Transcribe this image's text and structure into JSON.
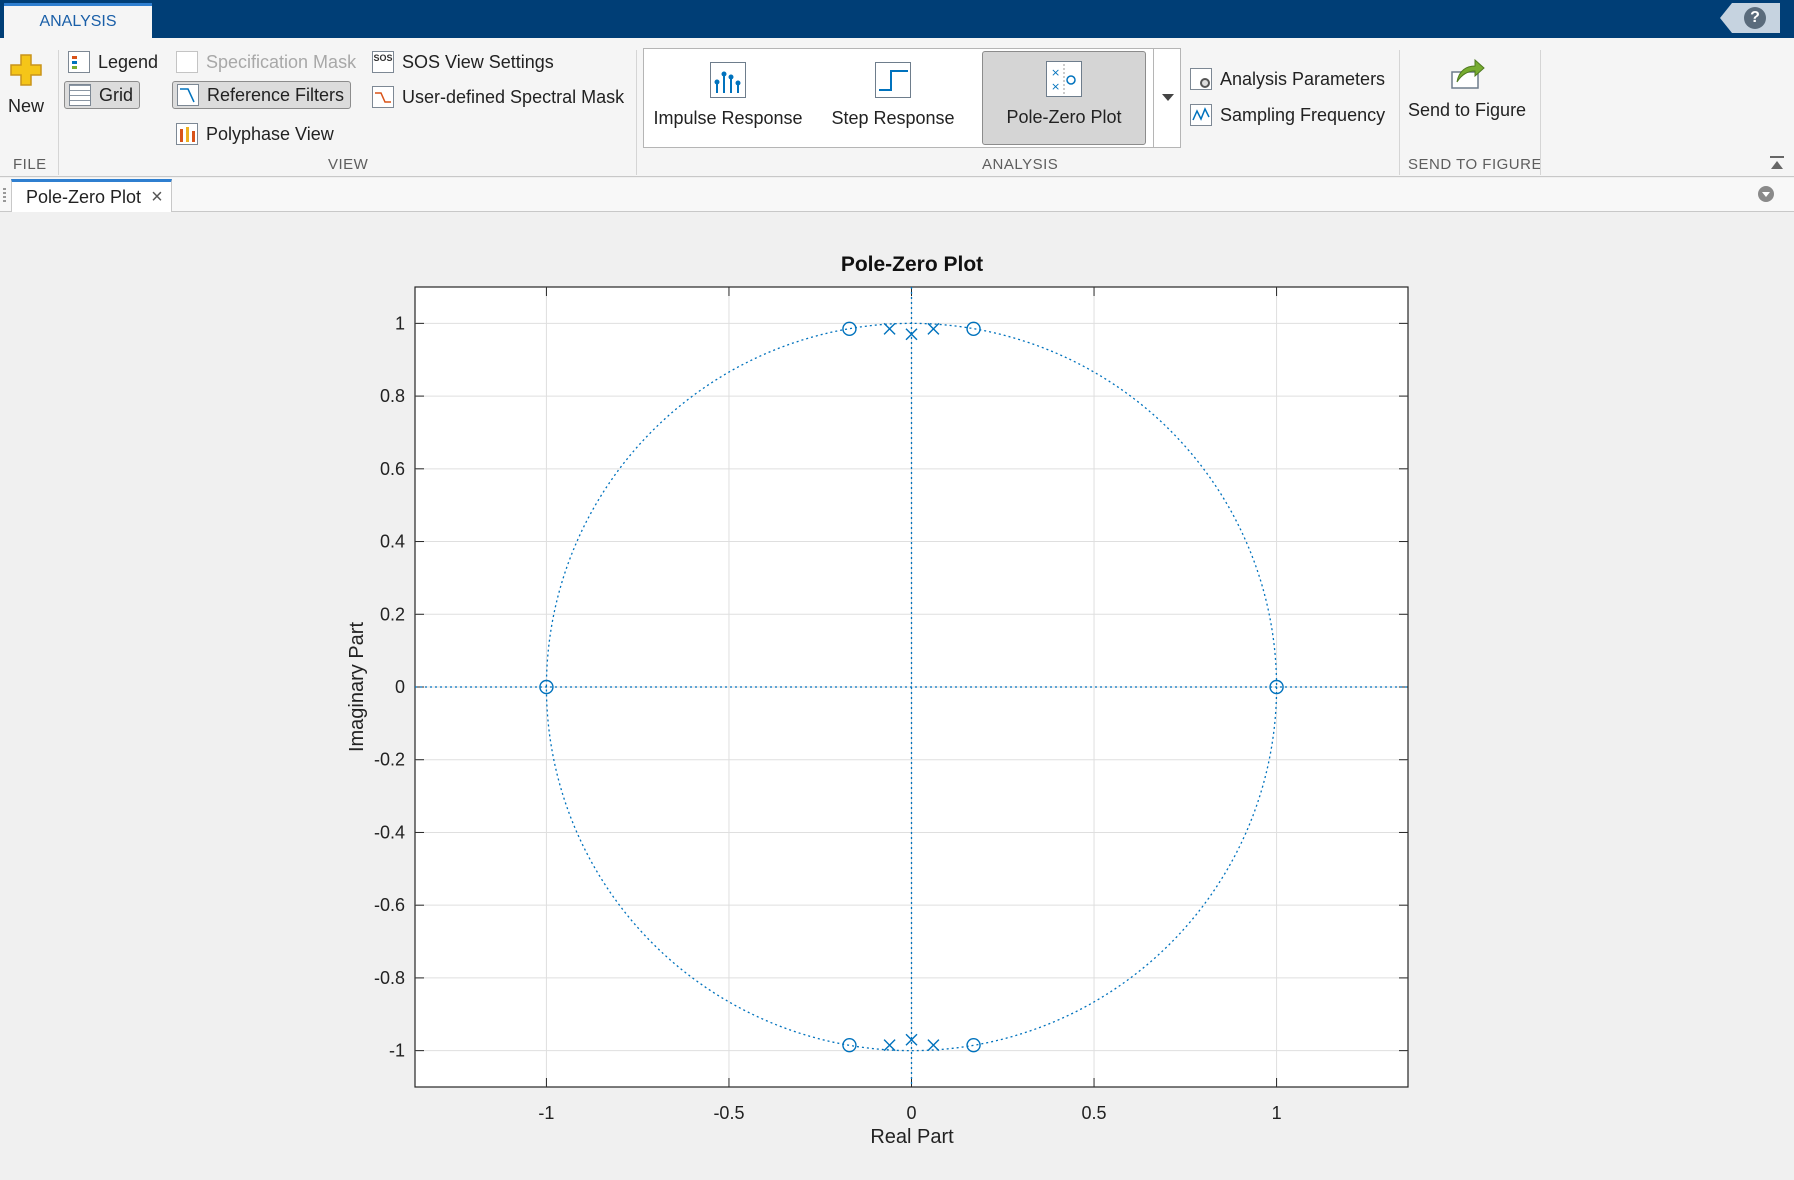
{
  "toolstrip": {
    "tab_label": "ANALYSIS",
    "help_label": "?"
  },
  "file_group": {
    "new_label": "New",
    "group_label": "FILE"
  },
  "view_group": {
    "legend_label": "Legend",
    "grid_label": "Grid",
    "specification_mask_label": "Specification Mask",
    "reference_filters_label": "Reference Filters",
    "polyphase_view_label": "Polyphase View",
    "sos_view_settings_label": "SOS View Settings",
    "spectral_mask_label": "User-defined Spectral Mask",
    "group_label": "VIEW"
  },
  "analysis_group": {
    "impulse_label": "Impulse Response",
    "step_label": "Step Response",
    "polezero_label": "Pole-Zero Plot",
    "analysis_parameters_label": "Analysis Parameters",
    "sampling_frequency_label": "Sampling Frequency",
    "group_label": "ANALYSIS"
  },
  "send_group": {
    "send_label": "Send to Figure",
    "group_label": "SEND TO FIGURE"
  },
  "document": {
    "tab_label": "Pole-Zero Plot",
    "close_glyph": "×"
  },
  "colors": {
    "accent": "#0072bd",
    "titlebar": "#003e76"
  },
  "chart_data": {
    "type": "scatter",
    "title": "Pole-Zero Plot",
    "xlabel": "Real Part",
    "ylabel": "Imaginary Part",
    "xlim": [
      -1.36,
      1.36
    ],
    "ylim": [
      -1.1,
      1.1
    ],
    "xticks": [
      -1,
      -0.5,
      0,
      0.5,
      1
    ],
    "yticks": [
      -1,
      -0.8,
      -0.6,
      -0.4,
      -0.2,
      0,
      0.2,
      0.4,
      0.6,
      0.8,
      1
    ],
    "xtick_labels": [
      "-1",
      "-0.5",
      "0",
      "0.5",
      "1"
    ],
    "ytick_labels": [
      "-1",
      "-0.8",
      "-0.6",
      "-0.4",
      "-0.2",
      "0",
      "0.2",
      "0.4",
      "0.6",
      "0.8",
      "1"
    ],
    "grid": true,
    "unit_circle": true,
    "zeros": [
      {
        "re": -1.0,
        "im": 0.0
      },
      {
        "re": 1.0,
        "im": 0.0
      },
      {
        "re": -0.17,
        "im": 0.985
      },
      {
        "re": 0.17,
        "im": 0.985
      },
      {
        "re": -0.17,
        "im": -0.985
      },
      {
        "re": 0.17,
        "im": -0.985
      }
    ],
    "poles": [
      {
        "re": -0.06,
        "im": 0.985
      },
      {
        "re": 0.0,
        "im": 0.97
      },
      {
        "re": 0.06,
        "im": 0.985
      },
      {
        "re": -0.06,
        "im": -0.985
      },
      {
        "re": 0.0,
        "im": -0.97
      },
      {
        "re": 0.06,
        "im": -0.985
      }
    ]
  }
}
